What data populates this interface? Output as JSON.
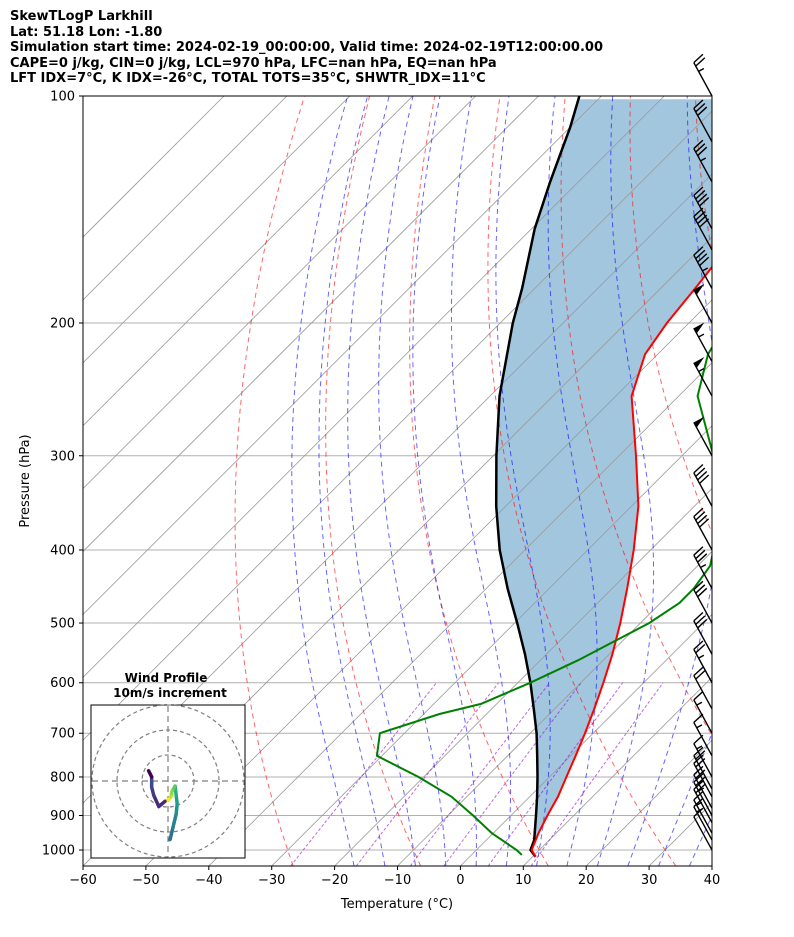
{
  "header": {
    "title": "SkewTLogP Larkhill",
    "latlon": "Lat: 51.18   Lon: -1.80",
    "times": "Simulation start time: 2024-02-19_00:00:00, Valid time: 2024-02-19T12:00:00.00",
    "params": "CAPE=0 j/kg, CIN=0 j/kg, LCL=970 hPa, LFC=nan hPa, EQ=nan hPa",
    "indices": "LFT IDX=7°C, K IDX=-26°C, TOTAL TOTS=35°C, SHWTR_IDX=11°C"
  },
  "colors": {
    "temperature": "#ff0000",
    "dewpoint": "#008000",
    "parcel": "#000000",
    "cape_fill": "#a3c6df",
    "dry_adiabat": "#ff0000",
    "moist_adiabat": "#0000ff",
    "mixing_ratio": "#9400d3",
    "isotherm": "#999999"
  },
  "inset": {
    "title": "Wind Profile",
    "subtitle": "10m/s increment"
  },
  "chart_data": {
    "type": "line",
    "title": "",
    "xlabel": "Temperature (°C)",
    "ylabel": "Pressure (hPa)",
    "xlim": [
      -60,
      40
    ],
    "ylim": [
      1050,
      100
    ],
    "y_scale": "log",
    "x_ticks": [
      "−60",
      "−50",
      "−40",
      "−30",
      "−20",
      "−10",
      "0",
      "10",
      "20",
      "30",
      "40"
    ],
    "y_ticks": [
      "100",
      "200",
      "300",
      "400",
      "500",
      "600",
      "700",
      "800",
      "900",
      "1000"
    ],
    "grid": true,
    "series": [
      {
        "key": "temperature",
        "pressure": [
          1021,
          1000,
          950,
          900,
          850,
          800,
          750,
          700,
          650,
          600,
          550,
          500,
          450,
          400,
          350,
          300,
          250,
          220,
          200,
          180,
          150,
          130,
          110,
          100
        ],
        "temperature": [
          10.5,
          8.8,
          7.2,
          5.8,
          4.5,
          2.7,
          0.8,
          -1.3,
          -3.7,
          -6.4,
          -9.5,
          -13.2,
          -17.6,
          -22.7,
          -28.9,
          -37.3,
          -47.5,
          -52.0,
          -53.5,
          -54.5,
          -56.5,
          -57.0,
          -55.5,
          -55.8
        ]
      },
      {
        "key": "dewpoint",
        "pressure": [
          1015,
          1000,
          950,
          900,
          850,
          800,
          750,
          700,
          660,
          640,
          600,
          560,
          500,
          470,
          450,
          420,
          400,
          350,
          300,
          250,
          220,
          200,
          170,
          150,
          130,
          110,
          100
        ],
        "temperature": [
          8.0,
          6.4,
          -0.2,
          -6.0,
          -12.4,
          -20.8,
          -30.8,
          -33.9,
          -27.5,
          -22.5,
          -18.0,
          -14.0,
          -8.6,
          -7.0,
          -7.0,
          -8.0,
          -10.0,
          -16.0,
          -25.0,
          -37.0,
          -42.0,
          -44.0,
          -48.5,
          -50.0,
          -53.0,
          -58.0,
          -63.0
        ]
      },
      {
        "key": "parcel",
        "pressure": [
          1021,
          1000,
          970,
          950,
          900,
          850,
          800,
          750,
          700,
          650,
          600,
          550,
          500,
          450,
          400,
          350,
          300,
          250,
          200,
          180,
          150,
          130,
          110,
          100
        ],
        "temperature": [
          10.5,
          8.6,
          7.6,
          6.6,
          4.0,
          1.2,
          -1.9,
          -5.3,
          -9.0,
          -13.3,
          -18.0,
          -23.4,
          -29.6,
          -36.6,
          -44.0,
          -51.5,
          -59.5,
          -68.5,
          -78.0,
          -82.0,
          -89.5,
          -94.5,
          -100.0,
          -103.5
        ]
      }
    ],
    "wind_barbs": {
      "pressure": [
        1000,
        970,
        950,
        920,
        900,
        880,
        850,
        830,
        800,
        750,
        700,
        650,
        600,
        550,
        500,
        450,
        400,
        350,
        300,
        250,
        225,
        200,
        180,
        160,
        150,
        130,
        115,
        100
      ],
      "speed_kt": [
        10,
        15,
        15,
        20,
        25,
        25,
        20,
        20,
        15,
        15,
        15,
        20,
        25,
        30,
        30,
        35,
        40,
        40,
        50,
        55,
        55,
        50,
        45,
        40,
        40,
        35,
        30,
        25
      ]
    },
    "hodograph": {
      "u": [
        0.4,
        1.0,
        1.6,
        1.8,
        1.6,
        1.4,
        0.8,
        0.6,
        0.2,
        -0.6,
        -1.8,
        -2.8,
        -3.2,
        -3.2,
        -3.8
      ],
      "v": [
        -11.5,
        -9.0,
        -6.5,
        -4.5,
        -2.8,
        -1.0,
        -2.0,
        -3.0,
        -3.6,
        -4.0,
        -5.0,
        -2.8,
        -1.2,
        0.8,
        2.0
      ]
    }
  }
}
